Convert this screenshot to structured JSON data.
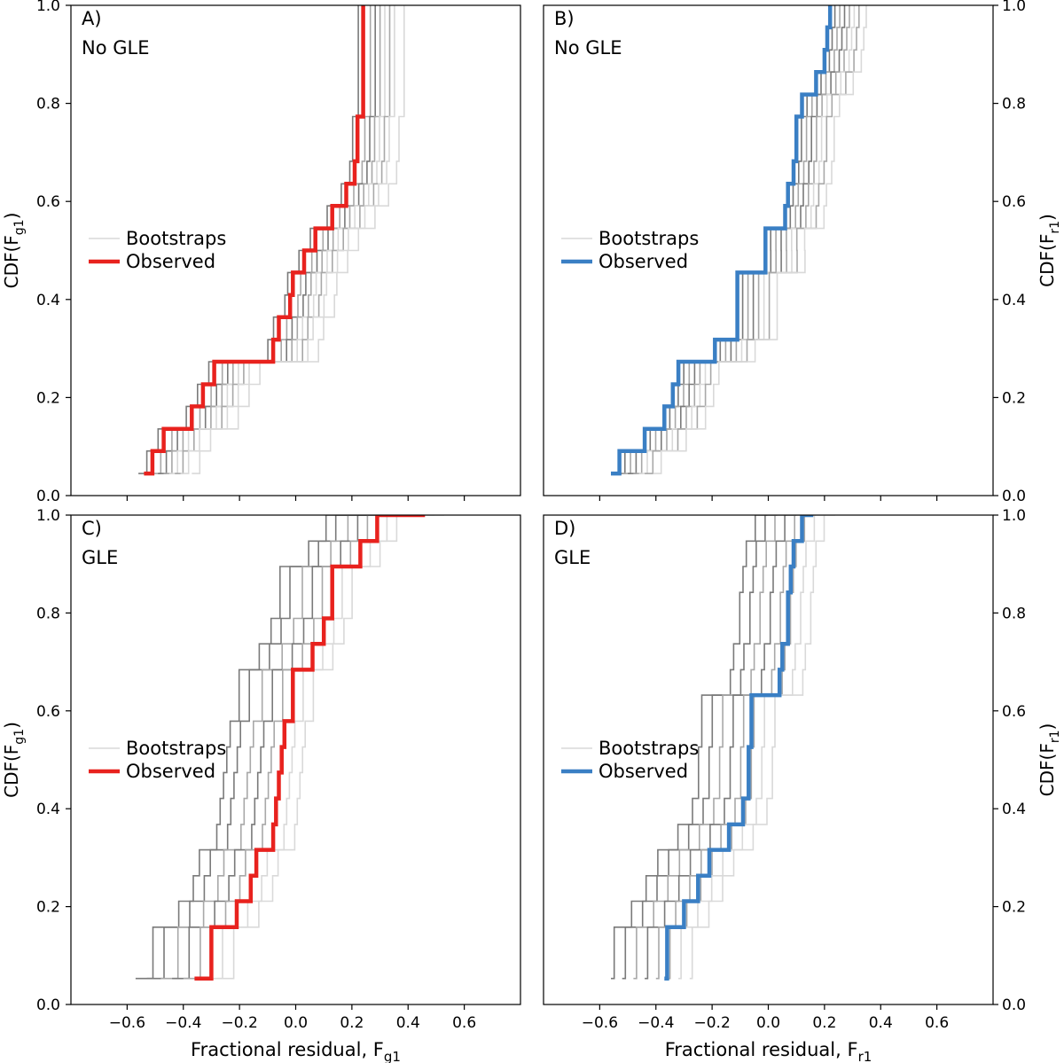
{
  "chart_data": [
    {
      "type": "line",
      "panel_label": "A)",
      "subtitle": "No GLE",
      "ylabel": "CDF(F",
      "ylabel_sub": "g1",
      "ylabel_suffix": ")",
      "xlabel": "",
      "xlim": [
        -0.8,
        0.8
      ],
      "ylim": [
        0.0,
        1.0
      ],
      "yticks": [
        "0.0",
        "0.2",
        "0.4",
        "0.6",
        "0.8",
        "1.0"
      ],
      "xticks": [],
      "observed_color": "#e8221e",
      "legend": {
        "placement": "center-left",
        "entries": [
          "Bootstraps",
          "Observed"
        ]
      },
      "observed": {
        "x": [
          -0.54,
          -0.51,
          -0.47,
          -0.37,
          -0.33,
          -0.29,
          -0.08,
          -0.06,
          -0.02,
          -0.01,
          0.03,
          0.07,
          0.13,
          0.18,
          0.21,
          0.22,
          0.24
        ],
        "y": [
          0.045,
          0.091,
          0.136,
          0.182,
          0.227,
          0.273,
          0.318,
          0.364,
          0.409,
          0.455,
          0.5,
          0.545,
          0.591,
          0.636,
          0.682,
          0.773,
          1.0
        ]
      },
      "bootstraps": [
        {
          "shift": -0.02,
          "shade": "dark"
        },
        {
          "shift": 0.0,
          "shade": "dark"
        },
        {
          "shift": 0.03,
          "shade": "mid"
        },
        {
          "shift": 0.05,
          "shade": "dark"
        },
        {
          "shift": 0.07,
          "shade": "mid"
        },
        {
          "shift": 0.09,
          "shade": "light"
        },
        {
          "shift": 0.11,
          "shade": "mid"
        },
        {
          "shift": 0.13,
          "shade": "light"
        },
        {
          "shift": 0.17,
          "shade": "light"
        }
      ]
    },
    {
      "type": "line",
      "panel_label": "B)",
      "subtitle": "No GLE",
      "ylabel": "CDF(F",
      "ylabel_sub": "r1",
      "ylabel_suffix": ")",
      "xlabel": "",
      "xlim": [
        -0.8,
        0.8
      ],
      "ylim": [
        0.0,
        1.0
      ],
      "yticks": [
        "0.0",
        "0.2",
        "0.4",
        "0.6",
        "0.8",
        "1.0"
      ],
      "xticks": [],
      "observed_color": "#3a7fc4",
      "legend": {
        "placement": "center-left",
        "entries": [
          "Bootstraps",
          "Observed"
        ]
      },
      "observed": {
        "x": [
          -0.56,
          -0.53,
          -0.44,
          -0.37,
          -0.34,
          -0.32,
          -0.19,
          -0.11,
          -0.01,
          -0.01,
          0.06,
          0.07,
          0.09,
          0.1,
          0.12,
          0.17,
          0.2,
          0.21,
          0.22
        ],
        "y": [
          0.045,
          0.091,
          0.136,
          0.182,
          0.227,
          0.273,
          0.318,
          0.455,
          0.5,
          0.545,
          0.591,
          0.636,
          0.682,
          0.773,
          0.818,
          0.864,
          0.909,
          0.955,
          1.0
        ]
      },
      "bootstraps": [
        {
          "shift": 0.0,
          "shade": "dark"
        },
        {
          "shift": 0.02,
          "shade": "dark"
        },
        {
          "shift": 0.04,
          "shade": "mid"
        },
        {
          "shift": 0.06,
          "shade": "dark"
        },
        {
          "shift": 0.08,
          "shade": "mid"
        },
        {
          "shift": 0.1,
          "shade": "light"
        },
        {
          "shift": 0.12,
          "shade": "mid"
        },
        {
          "shift": 0.15,
          "shade": "light"
        }
      ]
    },
    {
      "type": "line",
      "panel_label": "C)",
      "subtitle": "GLE",
      "ylabel": "CDF(F",
      "ylabel_sub": "g1",
      "ylabel_suffix": ")",
      "xlabel": "Fractional residual, F",
      "xlabel_sub": "g1",
      "xlim": [
        -0.8,
        0.8
      ],
      "ylim": [
        0.0,
        1.0
      ],
      "yticks": [
        "0.0",
        "0.2",
        "0.4",
        "0.6",
        "0.8",
        "1.0"
      ],
      "xticks": [
        "−0.6",
        "−0.4",
        "−0.2",
        "0.0",
        "0.2",
        "0.4",
        "0.6"
      ],
      "observed_color": "#e8221e",
      "legend": {
        "placement": "center-left",
        "entries": [
          "Bootstraps",
          "Observed"
        ]
      },
      "observed": {
        "x": [
          -0.36,
          -0.3,
          -0.21,
          -0.16,
          -0.14,
          -0.08,
          -0.07,
          -0.06,
          -0.05,
          -0.04,
          -0.01,
          0.06,
          0.1,
          0.13,
          0.23,
          0.29,
          0.46
        ],
        "y": [
          0.053,
          0.158,
          0.211,
          0.263,
          0.316,
          0.368,
          0.421,
          0.474,
          0.526,
          0.579,
          0.684,
          0.737,
          0.789,
          0.895,
          0.947,
          1.0,
          1.0
        ]
      },
      "bootstraps": [
        {
          "shift": -0.21,
          "shade": "dark"
        },
        {
          "shift": -0.17,
          "shade": "dark"
        },
        {
          "shift": -0.12,
          "shade": "mid"
        },
        {
          "shift": -0.08,
          "shade": "dark"
        },
        {
          "shift": -0.04,
          "shade": "mid"
        },
        {
          "shift": 0.0,
          "shade": "mid"
        },
        {
          "shift": 0.04,
          "shade": "light"
        },
        {
          "shift": 0.08,
          "shade": "light"
        }
      ]
    },
    {
      "type": "line",
      "panel_label": "D)",
      "subtitle": "GLE",
      "ylabel": "CDF(F",
      "ylabel_sub": "r1",
      "ylabel_suffix": ")",
      "xlabel": "Fractional residual, F",
      "xlabel_sub": "r1",
      "xlim": [
        -0.8,
        0.8
      ],
      "ylim": [
        0.0,
        1.0
      ],
      "yticks": [
        "0.0",
        "0.2",
        "0.4",
        "0.6",
        "0.8",
        "1.0"
      ],
      "xticks": [
        "−0.6",
        "−0.4",
        "−0.2",
        "0.0",
        "0.2",
        "0.4",
        "0.6"
      ],
      "observed_color": "#3a7fc4",
      "legend": {
        "placement": "center-left",
        "entries": [
          "Bootstraps",
          "Observed"
        ]
      },
      "observed": {
        "x": [
          -0.37,
          -0.36,
          -0.3,
          -0.25,
          -0.21,
          -0.14,
          -0.09,
          -0.07,
          -0.06,
          0.04,
          0.05,
          0.07,
          0.08,
          0.09,
          0.12,
          0.14,
          0.16
        ],
        "y": [
          0.053,
          0.158,
          0.211,
          0.263,
          0.316,
          0.368,
          0.421,
          0.526,
          0.632,
          0.684,
          0.737,
          0.842,
          0.895,
          0.947,
          1.0,
          1.0,
          1.0
        ]
      },
      "bootstraps": [
        {
          "shift": -0.19,
          "shade": "dark"
        },
        {
          "shift": -0.15,
          "shade": "dark"
        },
        {
          "shift": -0.11,
          "shade": "mid"
        },
        {
          "shift": -0.07,
          "shade": "dark"
        },
        {
          "shift": -0.03,
          "shade": "mid"
        },
        {
          "shift": 0.01,
          "shade": "mid"
        },
        {
          "shift": 0.05,
          "shade": "light"
        },
        {
          "shift": 0.09,
          "shade": "light"
        }
      ]
    }
  ],
  "shades": {
    "dark": "#7a7a7a",
    "mid": "#a8a8a8",
    "light": "#d9d9d9"
  }
}
